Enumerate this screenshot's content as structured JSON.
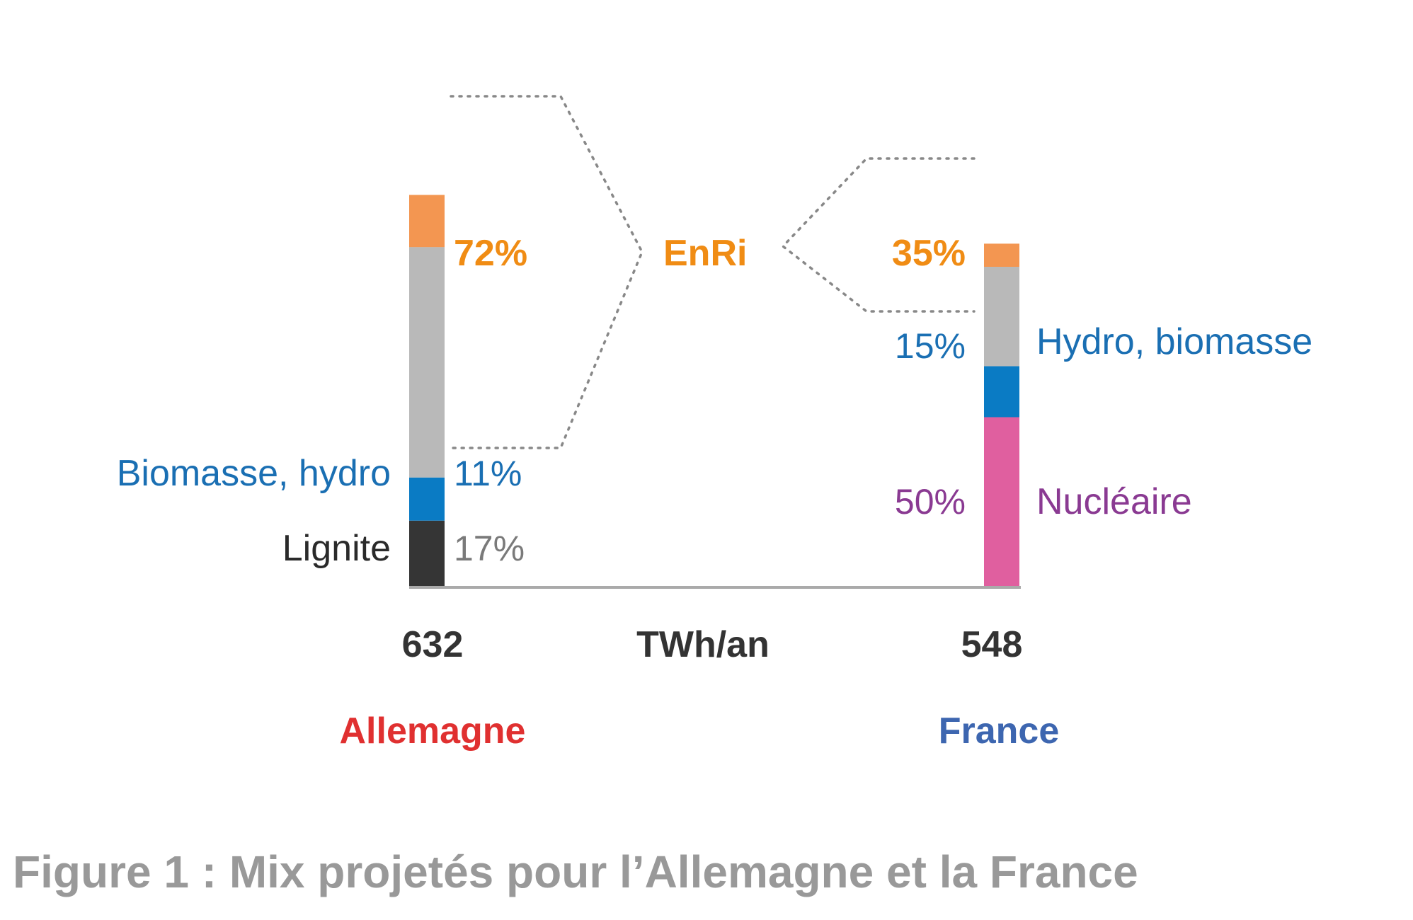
{
  "chart_data": {
    "type": "bar",
    "stacked": true,
    "unit": "TWh/an",
    "categories": [
      "Allemagne",
      "France"
    ],
    "totals": [
      "632",
      "548"
    ],
    "series": [
      {
        "country": "Allemagne",
        "stack": [
          {
            "key": "lignite",
            "value": 17,
            "color": "#353535"
          },
          {
            "key": "hydro",
            "value": 11,
            "color": "#0a7bc4"
          },
          {
            "key": "enri_gray",
            "value": 58.7,
            "color": "#b9b9b9"
          },
          {
            "key": "enri_orange",
            "value": 13.3,
            "color": "#f39651"
          }
        ]
      },
      {
        "country": "France",
        "stack": [
          {
            "key": "nuclear",
            "value": 50,
            "color": "#e05f9f"
          },
          {
            "key": "hydro",
            "value": 15,
            "color": "#0a7bc4"
          },
          {
            "key": "enri_gray",
            "value": 29.2,
            "color": "#b9b9b9"
          },
          {
            "key": "enri_orange",
            "value": 6.8,
            "color": "#f39651"
          }
        ]
      }
    ],
    "labels": {
      "allemagne_enri_pct": "72%",
      "allemagne_hydro_pct": "11%",
      "allemagne_lignite_pct": "17%",
      "allemagne_hydro_name": "Biomasse, hydro",
      "allemagne_lignite_name": "Lignite",
      "france_enri_pct": "35%",
      "france_hydro_pct": "15%",
      "france_nuclear_pct": "50%",
      "france_hydro_name": "Hydro, biomasse",
      "france_nuclear_name": "Nucléaire",
      "enri": "EnRi",
      "unit": "TWh/an",
      "total_allemagne": "632",
      "total_france": "548",
      "country_allemagne": "Allemagne",
      "country_france": "France"
    },
    "colors": {
      "enri_text": "#f08c14",
      "hydro_text": "#1a6fb3",
      "nuclear_text": "#8a3a92",
      "lignite_text": "#2a2a2a",
      "lignite_pct_text": "#7a7a7a",
      "total_text": "#333333",
      "allemagne_text": "#e03030",
      "france_text": "#3d66b0",
      "axis": "#aaaaaa",
      "connector": "#888888"
    }
  },
  "caption": "Figure 1 : Mix projetés pour l’Allemagne et la France"
}
